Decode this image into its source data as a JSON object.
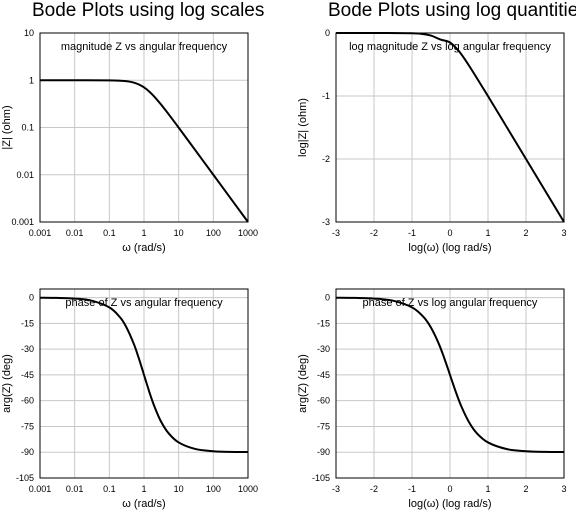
{
  "headings": {
    "left": "Bode Plots using log scales",
    "right": "Bode Plots using log quantities"
  },
  "chart_data": [
    {
      "id": "mag-logscale",
      "type": "line",
      "title": "magnitude Z vs angular frequency",
      "xlabel": "ω (rad/s)",
      "ylabel": "|Z| (ohm)",
      "xscale": "log",
      "yscale": "log",
      "xlim": [
        0.001,
        1000
      ],
      "ylim": [
        0.001,
        10
      ],
      "xticks": [
        "0.001",
        "0.01",
        "0.1",
        "1",
        "10",
        "100",
        "1000"
      ],
      "yticks": [
        "0.001",
        "0.01",
        "0.1",
        "1",
        "10"
      ],
      "grid": true,
      "series": [
        {
          "x": [
            0.001,
            0.01,
            0.1,
            0.3,
            0.5,
            0.7,
            1,
            1.5,
            2,
            3,
            5,
            10,
            30,
            100,
            300,
            1000
          ],
          "y": [
            1.0,
            1.0,
            0.995,
            0.958,
            0.894,
            0.819,
            0.707,
            0.555,
            0.447,
            0.316,
            0.196,
            0.0995,
            0.0333,
            0.01,
            0.00333,
            0.001
          ]
        }
      ]
    },
    {
      "id": "mag-logquantity",
      "type": "line",
      "title": "log magnitude Z vs log angular frequency",
      "xlabel": "log(ω) (log rad/s)",
      "ylabel": "log|Z| (ohm)",
      "xlim": [
        -3,
        3
      ],
      "ylim": [
        -3,
        0
      ],
      "xticks": [
        "-3",
        "-2",
        "-1",
        "0",
        "1",
        "2",
        "3"
      ],
      "yticks": [
        "-3",
        "-2",
        "-1",
        "0"
      ],
      "grid": true,
      "series": [
        {
          "x": [
            -3,
            -2,
            -1,
            -0.75,
            -0.5,
            -0.25,
            0,
            0.25,
            0.5,
            0.75,
            1,
            1.5,
            2,
            2.5,
            3
          ],
          "y": [
            0,
            0,
            -0.004,
            -0.013,
            -0.041,
            -0.105,
            -0.151,
            -0.3,
            -0.518,
            -0.758,
            -1.002,
            -1.5,
            -2.0,
            -2.5,
            -3.0
          ]
        }
      ]
    },
    {
      "id": "phase-logscale",
      "type": "line",
      "title": "phase of Z vs angular frequency",
      "xlabel": "ω (rad/s)",
      "ylabel": "arg(Z) (deg)",
      "xscale": "log",
      "xlim": [
        0.001,
        1000
      ],
      "ylim": [
        -105,
        5
      ],
      "xticks": [
        "0.001",
        "0.01",
        "0.1",
        "1",
        "10",
        "100",
        "1000"
      ],
      "yticks": [
        "-105",
        "-90",
        "-75",
        "-60",
        "-45",
        "-30",
        "-15",
        "0"
      ],
      "grid": true,
      "series": [
        {
          "x": [
            0.001,
            0.003,
            0.01,
            0.03,
            0.1,
            0.2,
            0.3,
            0.5,
            0.7,
            1,
            1.5,
            2,
            3,
            5,
            10,
            30,
            100,
            300,
            1000
          ],
          "y": [
            -0.06,
            -0.17,
            -0.57,
            -1.72,
            -5.71,
            -11.3,
            -16.7,
            -26.6,
            -35.0,
            -45.0,
            -56.3,
            -63.4,
            -71.6,
            -78.7,
            -84.3,
            -88.1,
            -89.4,
            -89.8,
            -89.9
          ]
        }
      ]
    },
    {
      "id": "phase-logquantity",
      "type": "line",
      "title": "phase of Z vs log angular frequency",
      "xlabel": "log(ω) (log rad/s)",
      "ylabel": "arg(Z) (deg)",
      "xlim": [
        -3,
        3
      ],
      "ylim": [
        -105,
        5
      ],
      "xticks": [
        "-3",
        "-2",
        "-1",
        "0",
        "1",
        "2",
        "3"
      ],
      "yticks": [
        "-105",
        "-90",
        "-75",
        "-60",
        "-45",
        "-30",
        "-15",
        "0"
      ],
      "grid": true,
      "series": [
        {
          "x": [
            -3,
            -2.5,
            -2,
            -1.5,
            -1,
            -0.7,
            -0.5,
            -0.3,
            -0.15,
            0,
            0.15,
            0.3,
            0.5,
            0.7,
            1,
            1.5,
            2,
            2.5,
            3
          ],
          "y": [
            -0.06,
            -0.18,
            -0.57,
            -1.81,
            -5.71,
            -11.2,
            -17.5,
            -26.6,
            -35.3,
            -45.0,
            -54.7,
            -63.4,
            -72.5,
            -78.8,
            -84.3,
            -88.2,
            -89.4,
            -89.8,
            -89.9
          ]
        }
      ]
    }
  ]
}
